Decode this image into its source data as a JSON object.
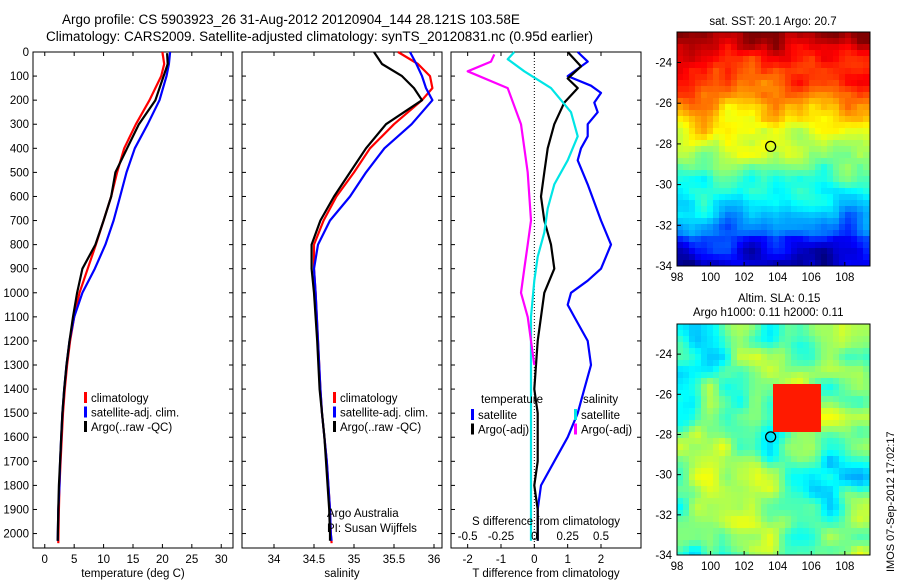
{
  "header": {
    "title_line1": "Argo profile: CS 5903923_26 31-Aug-2012 20120904_144 28.121S 103.58E",
    "title_line2": "Climatology: CARS2009. Satellite-adjusted climatology: synTS_20120831.nc (0.95d earlier)"
  },
  "side_stamp": "IMOS 07-Sep-2012 17:02:17",
  "colors": {
    "climatology": "#ff0000",
    "satellite": "#0000ff",
    "argo": "#000000",
    "salinity_satellite": "#00e5e5",
    "salinity_argo": "#ff00ff"
  },
  "chart_data": [
    {
      "name": "temperature-profile",
      "type": "line",
      "xlabel": "temperature (deg C)",
      "xlim": [
        -2,
        32
      ],
      "xticks": [
        0,
        5,
        10,
        15,
        20,
        25,
        30
      ],
      "ylim": [
        0,
        2060
      ],
      "yticks": [
        0,
        100,
        200,
        300,
        400,
        500,
        600,
        700,
        800,
        900,
        1000,
        1100,
        1200,
        1300,
        1400,
        1500,
        1600,
        1700,
        1800,
        1900,
        2000
      ],
      "legend": [
        "climatology",
        "satellite-adj. clim.",
        "Argo(..raw -QC)"
      ],
      "series": [
        {
          "name": "climatology",
          "color": "#ff0000",
          "x": [
            20.0,
            20.3,
            19.8,
            17.8,
            15.5,
            13.5,
            12.3,
            11.3,
            10.0,
            8.7,
            7.3,
            5.9,
            5.0,
            4.3,
            3.8,
            3.4,
            3.1,
            2.9,
            2.7,
            2.5,
            2.4,
            2.3
          ],
          "y": [
            0,
            50,
            100,
            200,
            300,
            400,
            500,
            600,
            700,
            800,
            900,
            1000,
            1100,
            1200,
            1300,
            1400,
            1500,
            1600,
            1700,
            1800,
            1900,
            2040
          ]
        },
        {
          "name": "satellite-adj. clim.",
          "color": "#0000ff",
          "x": [
            21.3,
            21.1,
            20.7,
            19.5,
            17.5,
            15.3,
            13.9,
            12.8,
            11.7,
            10.3,
            8.5,
            6.4,
            5.0,
            4.2,
            3.7,
            3.3,
            3.0,
            2.8,
            2.6,
            2.5,
            2.3,
            2.2
          ],
          "y": [
            0,
            50,
            100,
            200,
            300,
            400,
            500,
            600,
            700,
            800,
            900,
            1000,
            1100,
            1200,
            1300,
            1400,
            1500,
            1600,
            1700,
            1800,
            1900,
            2030
          ]
        },
        {
          "name": "Argo(..raw -QC)",
          "color": "#000000",
          "x": [
            20.8,
            20.9,
            20.2,
            18.8,
            16.0,
            14.0,
            12.0,
            11.3,
            10.0,
            8.6,
            6.4,
            5.5,
            4.8,
            4.2,
            3.7,
            3.3,
            3.0,
            2.8,
            2.6,
            2.4,
            2.3,
            2.2
          ],
          "y": [
            5,
            50,
            100,
            200,
            300,
            400,
            500,
            600,
            700,
            800,
            900,
            1000,
            1100,
            1200,
            1300,
            1400,
            1500,
            1600,
            1700,
            1800,
            1900,
            2030
          ]
        }
      ]
    },
    {
      "name": "salinity-profile",
      "type": "line",
      "xlabel": "salinity",
      "xlim": [
        33.6,
        36.1
      ],
      "xticks": [
        34,
        34.5,
        35,
        35.5,
        36
      ],
      "xtick_labels": [
        "34",
        "34.5",
        "35",
        "35.5",
        "36"
      ],
      "ylim": [
        0,
        2060
      ],
      "legend": [
        "climatology",
        "satellite-adj. clim.",
        "Argo(..raw -QC)"
      ],
      "annotations": [
        "Argo Australia",
        "PI: Susan Wijffels"
      ],
      "series": [
        {
          "name": "climatology",
          "color": "#ff0000",
          "x": [
            35.55,
            35.8,
            35.95,
            35.98,
            35.85,
            35.5,
            35.2,
            35.0,
            34.78,
            34.62,
            34.5,
            34.5,
            34.52,
            34.55,
            34.58,
            34.6,
            34.63,
            34.66,
            34.68,
            34.7,
            34.71,
            34.72
          ],
          "y": [
            0,
            50,
            100,
            150,
            200,
            300,
            400,
            500,
            600,
            700,
            800,
            900,
            1000,
            1200,
            1400,
            1500,
            1600,
            1700,
            1800,
            1900,
            2000,
            2040
          ]
        },
        {
          "name": "satellite-adj. clim.",
          "color": "#0000ff",
          "x": [
            35.7,
            35.78,
            35.85,
            35.9,
            35.98,
            35.72,
            35.38,
            35.15,
            34.95,
            34.7,
            34.55,
            34.5,
            34.52,
            34.55,
            34.58,
            34.6,
            34.63,
            34.66,
            34.68,
            34.7,
            34.71,
            34.72
          ],
          "y": [
            0,
            50,
            100,
            150,
            200,
            300,
            400,
            500,
            600,
            700,
            800,
            900,
            1000,
            1200,
            1400,
            1500,
            1600,
            1700,
            1800,
            1900,
            2000,
            2030
          ]
        },
        {
          "name": "Argo(..raw -QC)",
          "color": "#000000",
          "x": [
            35.25,
            35.35,
            35.6,
            35.75,
            35.85,
            35.4,
            35.15,
            34.95,
            34.75,
            34.58,
            34.47,
            34.47,
            34.5,
            34.54,
            34.57,
            34.6,
            34.63,
            34.65,
            34.67,
            34.69,
            34.7,
            34.7
          ],
          "y": [
            0,
            50,
            100,
            150,
            200,
            300,
            400,
            500,
            600,
            700,
            800,
            900,
            1000,
            1200,
            1400,
            1500,
            1600,
            1700,
            1800,
            1900,
            2000,
            2030
          ]
        }
      ]
    },
    {
      "name": "difference-profile",
      "type": "line",
      "xlabel": "T difference from climatology",
      "x2label": "S difference from climatology",
      "xlim": [
        -2.5,
        3.2
      ],
      "xticks": [
        -2,
        -1,
        0,
        1,
        2
      ],
      "x2ticks": [
        -0.5,
        -0.25,
        0,
        0.25,
        0.5
      ],
      "x2tick_labels": [
        "-0.5",
        "-0.25",
        "0",
        "0.25",
        "0.5"
      ],
      "ylim": [
        0,
        2060
      ],
      "legend_groups": [
        {
          "title": "temperature",
          "entries": [
            "satellite",
            "Argo(-adj)"
          ]
        },
        {
          "title": "salinity",
          "entries": [
            "satellite",
            "Argo(-adj)"
          ]
        }
      ],
      "series": [
        {
          "name": "temperature satellite",
          "color": "#0000ff",
          "x": [
            1.3,
            1.6,
            1.0,
            1.7,
            2.0,
            1.8,
            1.9,
            1.6,
            1.6,
            1.4,
            1.3,
            1.6,
            2.0,
            2.3,
            2.0,
            1.6,
            1.1,
            1.0,
            1.2,
            1.6,
            1.7,
            1.5,
            1.3,
            1.0,
            0.6,
            0.2,
            0.1,
            0.1
          ],
          "y": [
            0,
            40,
            100,
            140,
            170,
            210,
            250,
            300,
            350,
            400,
            450,
            550,
            700,
            800,
            900,
            950,
            1000,
            1050,
            1100,
            1200,
            1300,
            1400,
            1500,
            1600,
            1700,
            1800,
            1900,
            2030
          ]
        },
        {
          "name": "temperature Argo(-adj)",
          "color": "#000000",
          "x": [
            1.0,
            1.4,
            1.0,
            1.3,
            0.9,
            0.6,
            0.4,
            0.3,
            0.2,
            0.3,
            0.5,
            0.6,
            0.3,
            0.2,
            0.1,
            0.0,
            0.1,
            0.1,
            0.1,
            0.0,
            0.1,
            0.1
          ],
          "y": [
            0,
            60,
            110,
            150,
            210,
            300,
            400,
            500,
            600,
            700,
            800,
            900,
            1000,
            1100,
            1200,
            1400,
            1500,
            1600,
            1700,
            1800,
            1900,
            2030
          ]
        },
        {
          "name": "salinity satellite",
          "color": "#00e5e5",
          "x": [
            -0.6,
            -0.8,
            -0.3,
            0.5,
            1.1,
            1.3,
            1.0,
            0.6,
            0.4,
            0.3,
            0.1,
            0.0,
            -0.1,
            -0.1,
            -0.1,
            -0.1,
            -0.1,
            -0.1,
            -0.1
          ],
          "y": [
            0,
            30,
            80,
            150,
            250,
            350,
            450,
            550,
            650,
            750,
            850,
            950,
            1100,
            1300,
            1500,
            1700,
            1800,
            1900,
            2030
          ]
        },
        {
          "name": "salinity Argo(-adj)",
          "color": "#ff00ff",
          "x": [
            -1.2,
            -1.3,
            -2.0,
            -0.8,
            -0.4,
            -0.2,
            -0.1,
            -0.2,
            -0.3,
            -0.4,
            -0.2,
            -0.1,
            0.0
          ],
          "y": [
            10,
            40,
            80,
            150,
            300,
            500,
            700,
            800,
            900,
            1000,
            1100,
            1200,
            1300
          ]
        }
      ]
    },
    {
      "name": "sst-map",
      "type": "heatmap",
      "title": "sat. SST: 20.1 Argo: 20.7",
      "xlim": [
        98,
        109.5
      ],
      "ylim": [
        -34,
        -22.5
      ],
      "xticks": [
        98,
        100,
        102,
        104,
        106,
        108
      ],
      "yticks": [
        -24,
        -26,
        -28,
        -30,
        -32,
        -34
      ],
      "marker": {
        "lon": 103.58,
        "lat": -28.121
      }
    },
    {
      "name": "sla-map",
      "type": "heatmap",
      "title": "Altim. SLA: 0.15",
      "subtitle": "Argo h1000: 0.11 h2000: 0.11",
      "xlim": [
        98,
        109.5
      ],
      "ylim": [
        -34,
        -22.5
      ],
      "xticks": [
        98,
        100,
        102,
        104,
        106,
        108
      ],
      "yticks": [
        -24,
        -26,
        -28,
        -30,
        -32,
        -34
      ],
      "marker": {
        "lon": 103.58,
        "lat": -28.121
      }
    }
  ]
}
